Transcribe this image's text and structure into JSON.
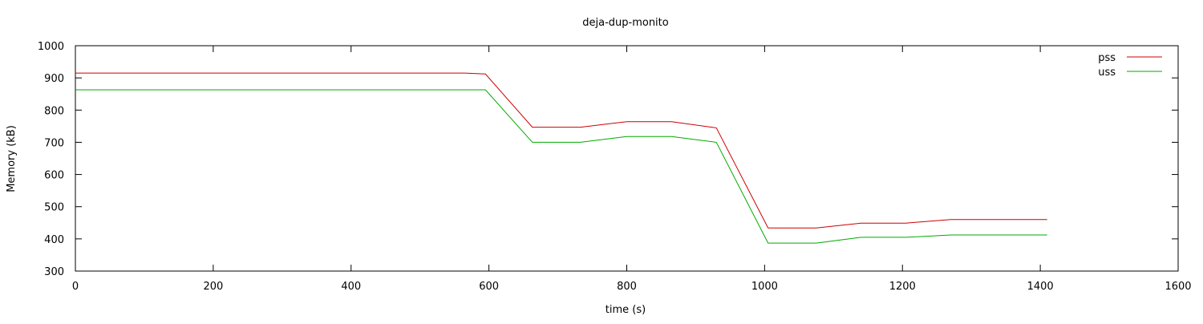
{
  "chart_data": {
    "type": "line",
    "title": "deja-dup-monito",
    "xlabel": "time (s)",
    "ylabel": "Memory (kB)",
    "xlim": [
      0,
      1600
    ],
    "ylim": [
      300,
      1000
    ],
    "x_ticks": [
      0,
      200,
      400,
      600,
      800,
      1000,
      1200,
      1400,
      1600
    ],
    "y_ticks": [
      300,
      400,
      500,
      600,
      700,
      800,
      900,
      1000
    ],
    "grid": false,
    "legend_position": "top-right",
    "series": [
      {
        "name": "pss",
        "color": "#cc0000",
        "points": [
          [
            0,
            915
          ],
          [
            565,
            915
          ],
          [
            595,
            912
          ],
          [
            663,
            747
          ],
          [
            733,
            747
          ],
          [
            800,
            764
          ],
          [
            865,
            764
          ],
          [
            930,
            745
          ],
          [
            1005,
            434
          ],
          [
            1075,
            434
          ],
          [
            1140,
            449
          ],
          [
            1205,
            449
          ],
          [
            1270,
            460
          ],
          [
            1410,
            460
          ]
        ]
      },
      {
        "name": "uss",
        "color": "#00aa00",
        "points": [
          [
            0,
            863
          ],
          [
            595,
            863
          ],
          [
            663,
            700
          ],
          [
            733,
            700
          ],
          [
            800,
            718
          ],
          [
            865,
            718
          ],
          [
            930,
            700
          ],
          [
            1005,
            387
          ],
          [
            1075,
            387
          ],
          [
            1140,
            405
          ],
          [
            1205,
            405
          ],
          [
            1270,
            412
          ],
          [
            1410,
            412
          ]
        ]
      }
    ]
  }
}
